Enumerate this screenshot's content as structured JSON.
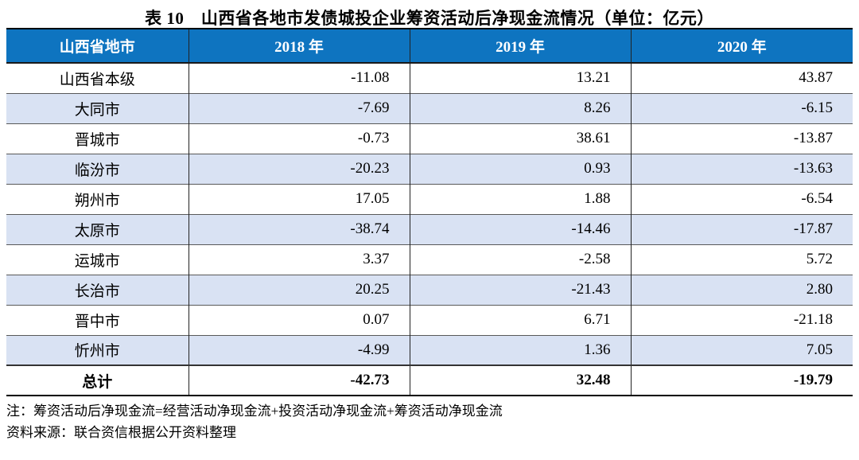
{
  "title": "表 10　山西省各地市发债城投企业筹资活动后净现金流情况（单位：亿元）",
  "table": {
    "columns": [
      "山西省地市",
      "2018 年",
      "2019 年",
      "2020 年"
    ],
    "rows": [
      {
        "name": "山西省本级",
        "values": [
          "-11.08",
          "13.21",
          "43.87"
        ]
      },
      {
        "name": "大同市",
        "values": [
          "-7.69",
          "8.26",
          "-6.15"
        ]
      },
      {
        "name": "晋城市",
        "values": [
          "-0.73",
          "38.61",
          "-13.87"
        ]
      },
      {
        "name": "临汾市",
        "values": [
          "-20.23",
          "0.93",
          "-13.63"
        ]
      },
      {
        "name": "朔州市",
        "values": [
          "17.05",
          "1.88",
          "-6.54"
        ]
      },
      {
        "name": "太原市",
        "values": [
          "-38.74",
          "-14.46",
          "-17.87"
        ]
      },
      {
        "name": "运城市",
        "values": [
          "3.37",
          "-2.58",
          "5.72"
        ]
      },
      {
        "name": "长治市",
        "values": [
          "20.25",
          "-21.43",
          "2.80"
        ]
      },
      {
        "name": "晋中市",
        "values": [
          "0.07",
          "6.71",
          "-21.18"
        ]
      },
      {
        "name": "忻州市",
        "values": [
          "-4.99",
          "1.36",
          "7.05"
        ]
      }
    ],
    "total_row": {
      "name": "总计",
      "values": [
        "-42.73",
        "32.48",
        "-19.79"
      ]
    }
  },
  "notes": {
    "note": "注：筹资活动后净现金流=经营活动净现金流+投资活动净现金流+筹资活动净现金流",
    "source": "资料来源：联合资信根据公开资料整理"
  },
  "colors": {
    "header_bg": "#0E74C0",
    "header_text": "#FFFFFF",
    "zebra_bg": "#D9E2F3",
    "border_dark": "#1A1A1A",
    "border_light": "#595959"
  }
}
